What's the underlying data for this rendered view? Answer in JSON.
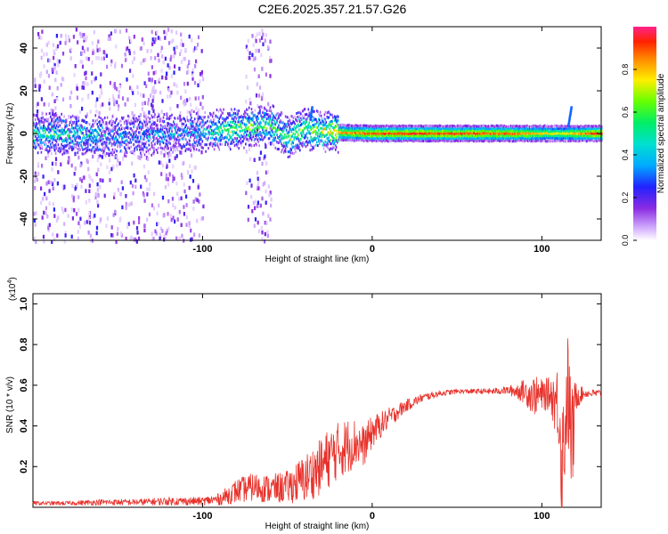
{
  "title": "C2E6.2025.357.21.57.G26",
  "colorbar": {
    "label": "Normalized spectral amplitude",
    "ticks": [
      0.0,
      0.2,
      0.4,
      0.6,
      0.8
    ]
  },
  "chart_data": [
    {
      "type": "heatmap",
      "title": "C2E6.2025.357.21.57.G26",
      "xlabel": "Height of straight line (km)",
      "ylabel": "Frequency (Hz)",
      "xlim": [
        -200,
        135
      ],
      "ylim": [
        -50,
        50
      ],
      "xticks": [
        -100,
        0,
        100
      ],
      "yticks": [
        40,
        20,
        0,
        -20,
        -40
      ],
      "zlim": [
        0,
        1
      ],
      "zlabel": "Normalized spectral amplitude",
      "line_center_hz": 0,
      "line_trace": [
        {
          "x": -195,
          "y": 0.0,
          "z": 0.5
        },
        {
          "x": -150,
          "y": -1.5,
          "z": 0.3
        },
        {
          "x": -120,
          "y": 0.0,
          "z": 0.3
        },
        {
          "x": -100,
          "y": 1.0,
          "z": 0.35
        },
        {
          "x": -85,
          "y": 2.0,
          "z": 0.6
        },
        {
          "x": -70,
          "y": 3.0,
          "z": 0.55
        },
        {
          "x": -60,
          "y": 4.0,
          "z": 0.5
        },
        {
          "x": -50,
          "y": -2.0,
          "z": 0.55
        },
        {
          "x": -40,
          "y": 2.0,
          "z": 0.55
        },
        {
          "x": -30,
          "y": 1.0,
          "z": 0.65
        },
        {
          "x": -20,
          "y": 0.5,
          "z": 0.8
        },
        {
          "x": 0,
          "y": 0.0,
          "z": 0.9
        },
        {
          "x": 50,
          "y": 0.0,
          "z": 0.9
        },
        {
          "x": 90,
          "y": 0.0,
          "z": 0.85
        },
        {
          "x": 110,
          "y": 0.0,
          "z": 0.7
        },
        {
          "x": 130,
          "y": 0.0,
          "z": 0.9
        }
      ],
      "noise_regions": [
        {
          "x_from": -200,
          "x_to": -100,
          "y_from": -50,
          "y_to": 50
        },
        {
          "x_from": -75,
          "x_to": -60,
          "y_from": -50,
          "y_to": 50
        }
      ],
      "features": [
        {
          "x": -37,
          "y_from": 8,
          "y_to": 13,
          "label": ""
        },
        {
          "x": 115,
          "y_from": 4,
          "y_to": 13,
          "label": ""
        }
      ]
    },
    {
      "type": "line",
      "xlabel": "Height of straight line (km)",
      "ylabel": "SNR (10 * v/v)",
      "scale_label": "(x10",
      "scale_exponent": "4",
      "scale_close": ")",
      "xlim": [
        -200,
        135
      ],
      "ylim": [
        0,
        1.05
      ],
      "xticks": [
        -100,
        0,
        100
      ],
      "yticks": [
        0.2,
        0.4,
        0.6,
        0.8,
        1.0
      ],
      "color": "#e8312a",
      "series": [
        {
          "name": "SNR",
          "x": [
            -200,
            -180,
            -160,
            -140,
            -120,
            -100,
            -90,
            -80,
            -70,
            -60,
            -50,
            -40,
            -30,
            -25,
            -20,
            -15,
            -10,
            -5,
            0,
            10,
            20,
            30,
            40,
            50,
            60,
            70,
            80,
            90,
            95,
            100,
            105,
            110,
            112,
            115,
            118,
            120,
            125,
            135
          ],
          "y": [
            0.02,
            0.02,
            0.025,
            0.025,
            0.03,
            0.03,
            0.04,
            0.08,
            0.1,
            0.09,
            0.1,
            0.14,
            0.2,
            0.25,
            0.28,
            0.3,
            0.32,
            0.3,
            0.37,
            0.44,
            0.5,
            0.54,
            0.56,
            0.57,
            0.57,
            0.57,
            0.575,
            0.57,
            0.55,
            0.55,
            0.56,
            0.5,
            0.2,
            0.58,
            0.3,
            0.55,
            0.56,
            0.56
          ],
          "noise": [
            0.01,
            0.01,
            0.015,
            0.015,
            0.02,
            0.02,
            0.03,
            0.06,
            0.07,
            0.07,
            0.08,
            0.12,
            0.14,
            0.15,
            0.14,
            0.14,
            0.12,
            0.1,
            0.08,
            0.05,
            0.03,
            0.02,
            0.015,
            0.012,
            0.012,
            0.015,
            0.02,
            0.06,
            0.1,
            0.08,
            0.08,
            0.22,
            0.35,
            0.3,
            0.3,
            0.08,
            0.02,
            0.02
          ]
        }
      ]
    }
  ]
}
